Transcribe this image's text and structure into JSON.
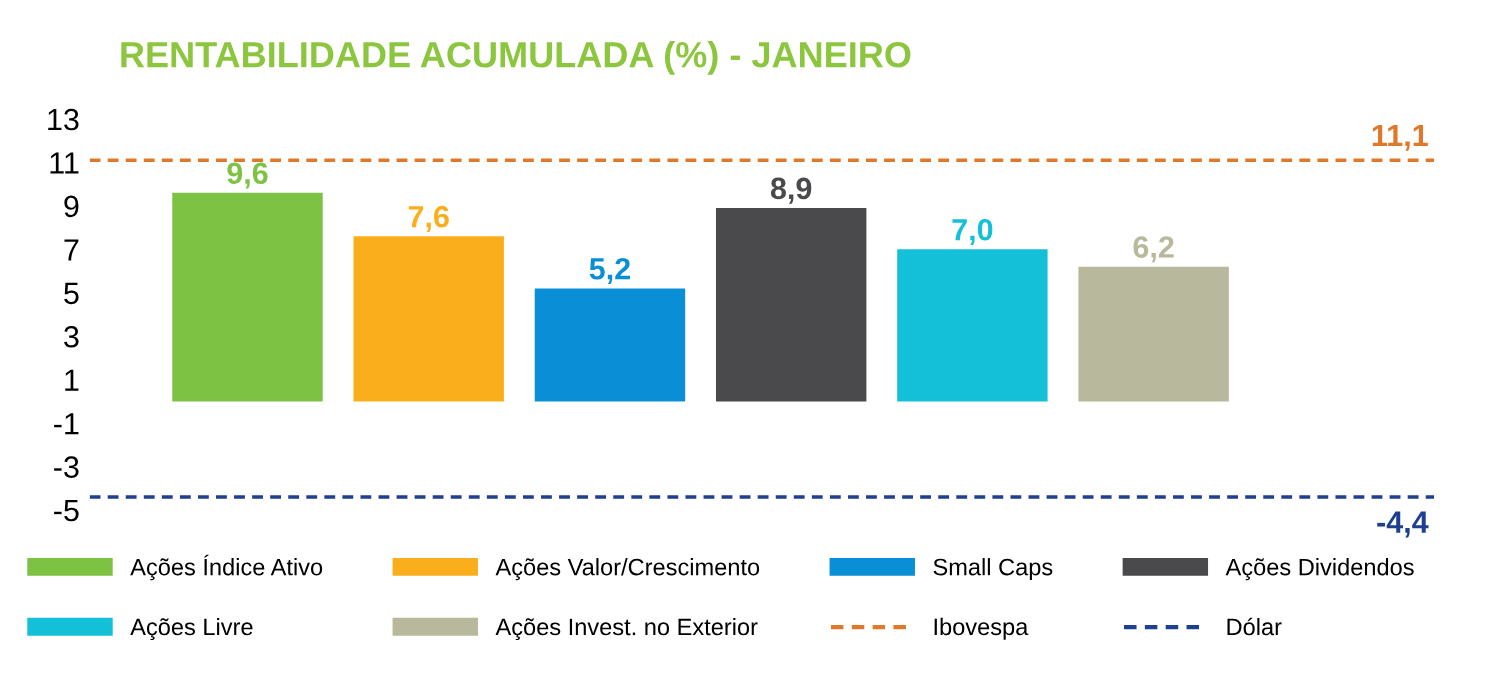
{
  "chart_data": {
    "type": "bar",
    "title": "RENTABILIDADE ACUMULADA (%) - JANEIRO",
    "categories": [
      null
    ],
    "series": [
      {
        "name": "Ações Índice Ativo",
        "color": "#7dc242",
        "values": [
          9.6
        ],
        "value_labels": [
          "9,6"
        ]
      },
      {
        "name": "Ações Valor/Crescimento",
        "color": "#fbae1c",
        "values": [
          7.6
        ],
        "value_labels": [
          "7,6"
        ]
      },
      {
        "name": "Small Caps",
        "color": "#0a8fd6",
        "values": [
          5.2
        ],
        "value_labels": [
          "5,2"
        ]
      },
      {
        "name": "Ações Dividendos",
        "color": "#4a4a4c",
        "values": [
          8.9
        ],
        "value_labels": [
          "8,9"
        ]
      },
      {
        "name": "Ações Livre",
        "color": "#14c0d8",
        "values": [
          7.0
        ],
        "value_labels": [
          "7,0"
        ]
      },
      {
        "name": "Ações Invest. no Exterior",
        "color": "#b8b89c",
        "values": [
          6.2
        ],
        "value_labels": [
          "6,2"
        ]
      }
    ],
    "ref_lines": [
      {
        "axis": "y",
        "value": 11.1,
        "label": "Ibovespa",
        "color": "#e0782a",
        "line_style": "dashed"
      },
      {
        "axis": "y",
        "value": -4.4,
        "label": "Dólar",
        "color": "#1f3f8f",
        "line_style": "dashed"
      }
    ],
    "annotations": [
      {
        "text": "11,1",
        "y": 11.1
      },
      {
        "text": "-4,4",
        "y": -4.4
      }
    ],
    "ylim": [
      -5,
      13
    ],
    "yticks": [
      {
        "value": -5,
        "label": "-5"
      },
      {
        "value": -3,
        "label": "-3"
      },
      {
        "value": -1,
        "label": "-1"
      },
      1,
      3,
      5,
      7,
      9,
      11,
      13
    ],
    "grid": false,
    "legend": "bottom"
  }
}
